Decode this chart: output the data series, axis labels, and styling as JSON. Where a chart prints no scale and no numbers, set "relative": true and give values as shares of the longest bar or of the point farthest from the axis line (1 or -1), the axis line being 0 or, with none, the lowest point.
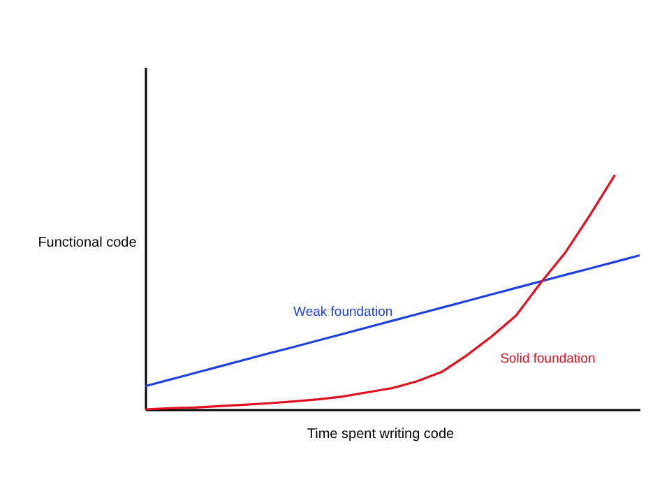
{
  "chart_data": {
    "type": "line",
    "relative": true,
    "xlabel": "Time spent writing code",
    "ylabel": "Functional code",
    "grid": false,
    "tick_labels": false,
    "categories": [
      null,
      null,
      null,
      null,
      null,
      null,
      null,
      null,
      null,
      null,
      null,
      null,
      null,
      null,
      null,
      null,
      null,
      null,
      null,
      null,
      null
    ],
    "series": [
      {
        "name": "Weak foundation",
        "color": "#2040e0",
        "values": [
          0.099,
          0.127,
          0.155,
          0.183,
          0.211,
          0.239,
          0.266,
          0.294,
          0.322,
          0.35,
          0.378,
          0.406,
          0.434,
          0.462,
          0.49,
          0.518,
          0.546,
          0.574,
          0.601,
          0.629,
          0.657
        ]
      },
      {
        "name": "Solid foundation",
        "color": "#e01020",
        "values": [
          0.0,
          0.005,
          0.008,
          0.014,
          0.02,
          0.026,
          0.034,
          0.043,
          0.055,
          0.073,
          0.091,
          0.12,
          0.16,
          0.23,
          0.31,
          0.4,
          0.54,
          0.67,
          0.83,
          1.0,
          null
        ]
      }
    ]
  }
}
